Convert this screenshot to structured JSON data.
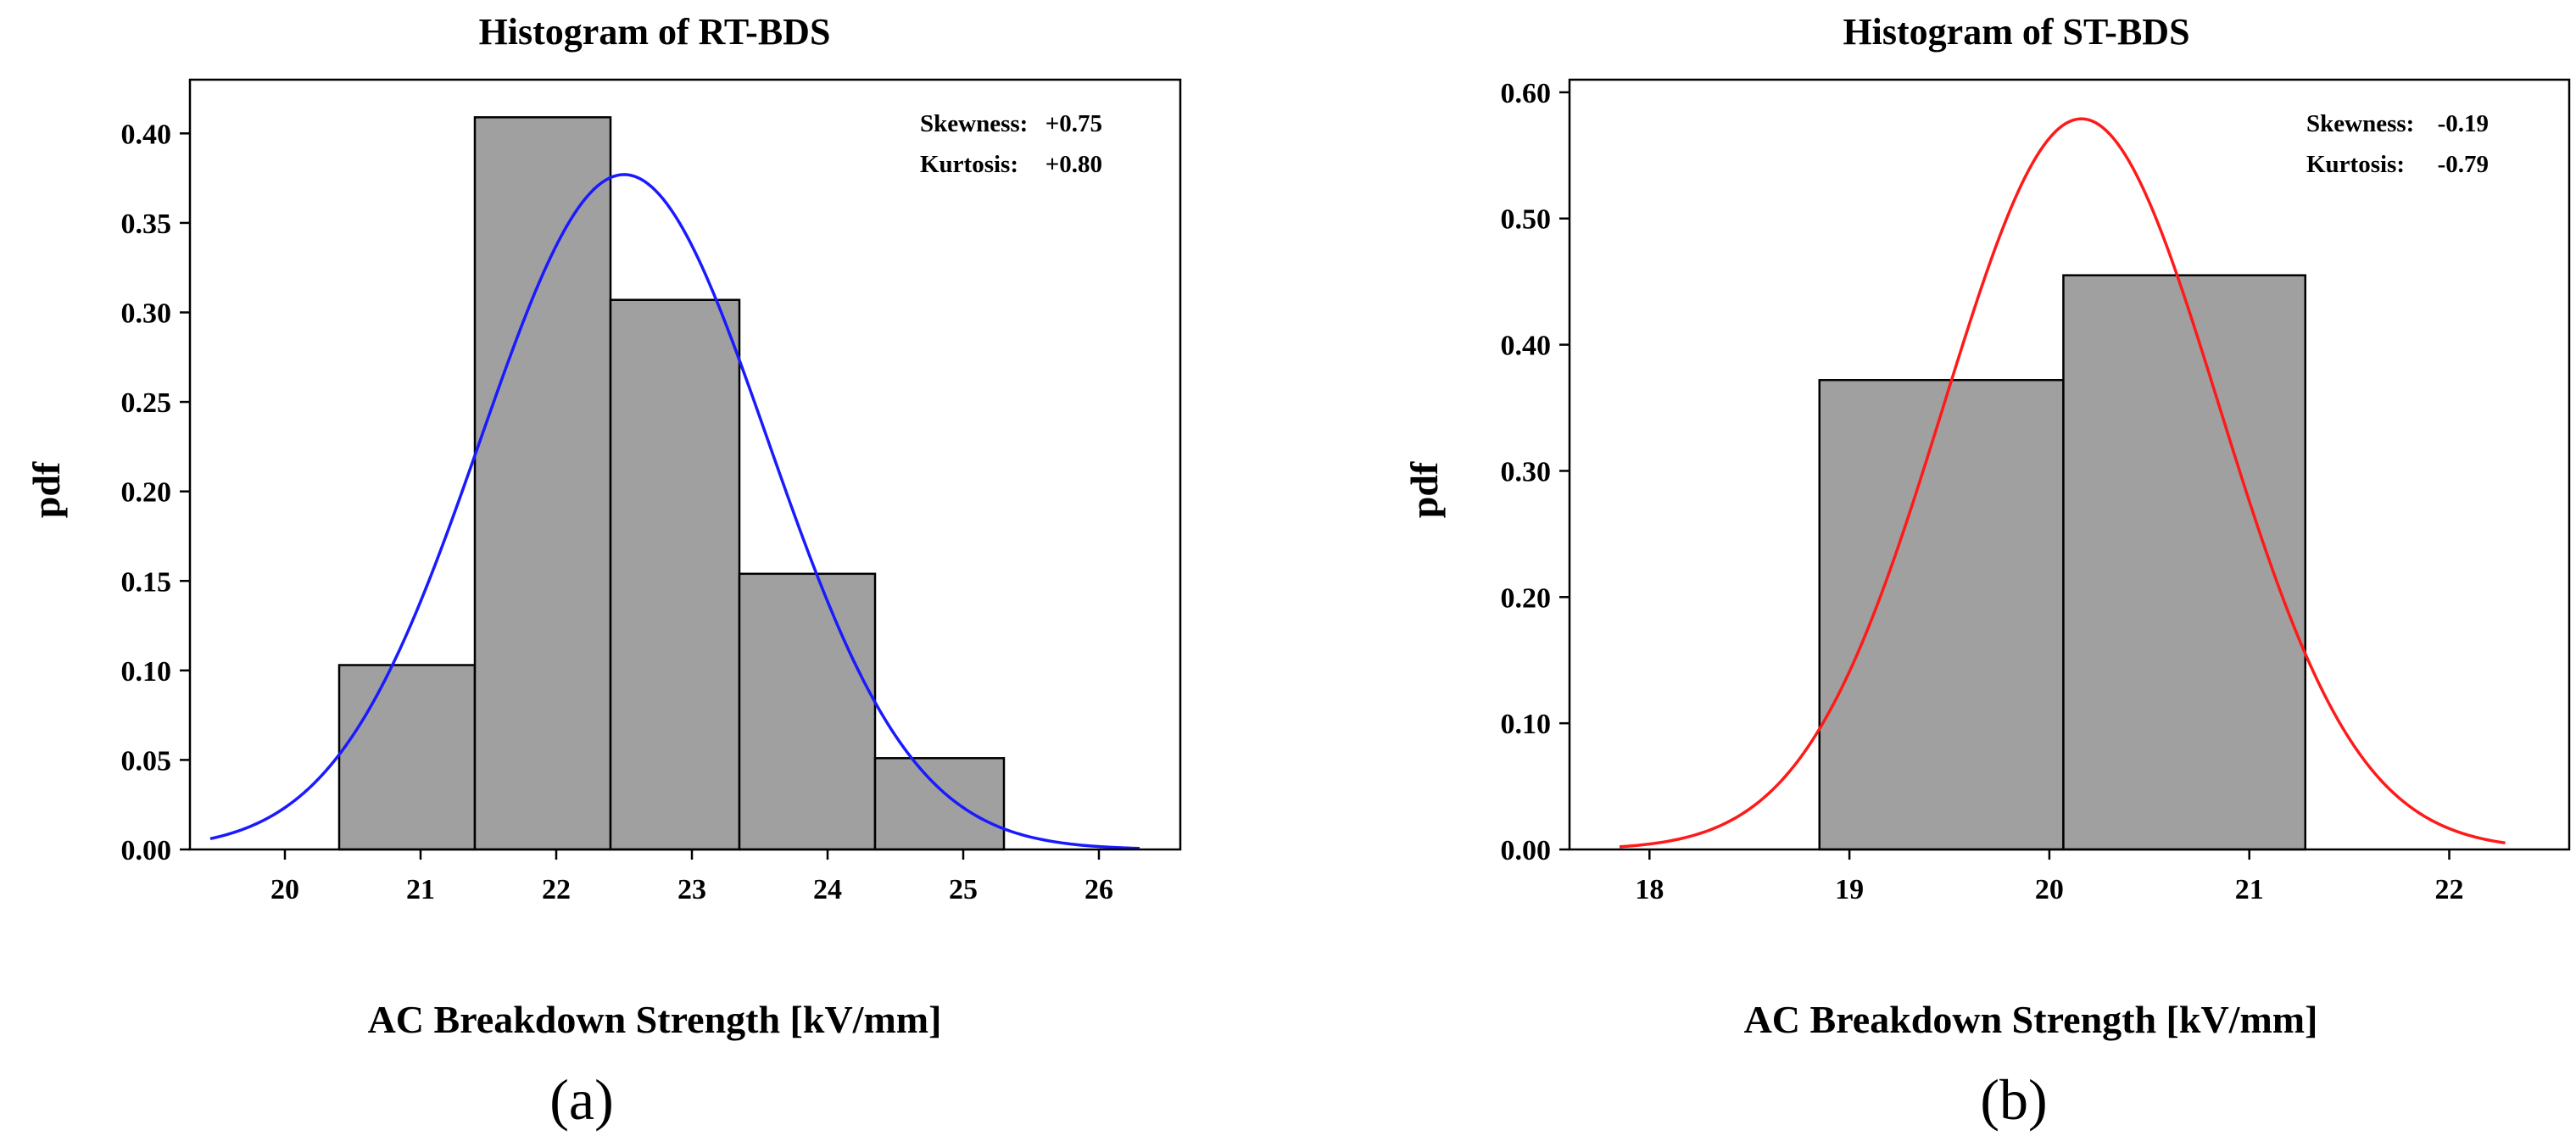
{
  "chart_data": [
    {
      "type": "bar",
      "panel_label": "(a)",
      "title": "Histogram of RT-BDS",
      "xlabel": "AC Breakdown Strength [kV/mm]",
      "ylabel": "pdf",
      "xlim": [
        19.3,
        26.6
      ],
      "ylim": [
        0,
        0.43
      ],
      "xticks": [
        20,
        21,
        22,
        23,
        24,
        25,
        26
      ],
      "xtick_labels": [
        "20",
        "21",
        "22",
        "23",
        "24",
        "25",
        "26"
      ],
      "yticks": [
        0,
        0.05,
        0.1,
        0.15,
        0.2,
        0.25,
        0.3,
        0.35,
        0.4
      ],
      "ytick_labels": [
        "0.00",
        "0.05",
        "0.10",
        "0.15",
        "0.20",
        "0.25",
        "0.30",
        "0.35",
        "0.40"
      ],
      "bins": [
        {
          "start": 20.4,
          "end": 21.4,
          "value": 0.103
        },
        {
          "start": 21.4,
          "end": 22.4,
          "value": 0.409
        },
        {
          "start": 22.4,
          "end": 23.35,
          "value": 0.307
        },
        {
          "start": 23.35,
          "end": 24.35,
          "value": 0.154
        },
        {
          "start": 24.35,
          "end": 25.3,
          "value": 0.051
        }
      ],
      "curve": {
        "mean": 22.5,
        "peak": 0.377,
        "sd": 1.06,
        "from": 19.45,
        "to": 26.3,
        "color": "#1a1aff"
      },
      "bar_color": "#a0a0a0",
      "stats": [
        {
          "label": "Skewness:",
          "value": "+0.75"
        },
        {
          "label": "Kurtosis:",
          "value": "+0.80"
        }
      ]
    },
    {
      "type": "bar",
      "panel_label": "(b)",
      "title": "Histogram of ST-BDS",
      "xlabel": "AC Breakdown Strength [kV/mm]",
      "ylabel": "pdf",
      "xlim": [
        17.6,
        22.6
      ],
      "ylim": [
        0,
        0.61
      ],
      "xticks": [
        18,
        19,
        20,
        21,
        22
      ],
      "xtick_labels": [
        "18",
        "19",
        "20",
        "21",
        "22"
      ],
      "yticks": [
        0,
        0.1,
        0.2,
        0.3,
        0.4,
        0.5,
        0.6
      ],
      "ytick_labels": [
        "0.00",
        "0.10",
        "0.20",
        "0.30",
        "0.40",
        "0.50",
        "0.60"
      ],
      "bins": [
        {
          "start": 18.85,
          "end": 20.07,
          "value": 0.372
        },
        {
          "start": 20.07,
          "end": 21.28,
          "value": 0.455
        }
      ],
      "curve": {
        "mean": 20.16,
        "peak": 0.579,
        "sd": 0.69,
        "from": 17.85,
        "to": 22.28,
        "color": "#ff1a1a"
      },
      "bar_color": "#a0a0a0",
      "stats": [
        {
          "label": "Skewness:",
          "value": "-0.19"
        },
        {
          "label": "Kurtosis:",
          "value": "-0.79"
        }
      ]
    }
  ]
}
